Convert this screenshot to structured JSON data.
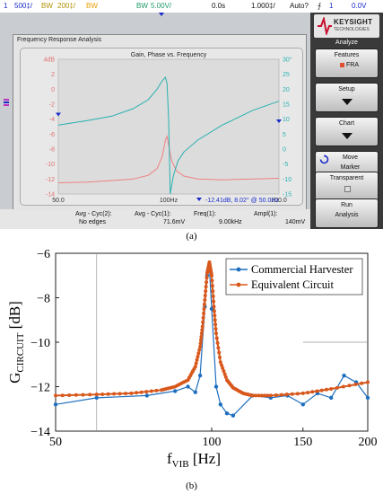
{
  "status_bar": {
    "ch1_num": "1",
    "ch1_scale": "500‡/",
    "ch1_bw": "BW",
    "ch2_scale": "200‡/",
    "ch2_bw": "BW",
    "ch4_bw": "BW",
    "ch4_scale": "5.00V/",
    "time_pos": "0.0s",
    "time_scale": "1.000‡/",
    "trigger_mode": "Auto?",
    "trigger_channel": "1",
    "trigger_level": "0.0V"
  },
  "fra_window": {
    "title": "Frequency Response Analysis",
    "chart_title": "Gain, Phase vs. Frequency",
    "marker_readout": "-12.41dB, 8.02° @ 50.0Hz"
  },
  "side_panel": {
    "brand": "KEYSIGHT",
    "brand_sub": "TECHNOLOGIES",
    "header": "Analyze",
    "buttons": [
      {
        "line1": "Features",
        "line2": "FRA"
      },
      {
        "line1": "Setup",
        "line2": ""
      },
      {
        "line1": "Chart",
        "line2": ""
      },
      {
        "line1": "Move",
        "line2": "Marker"
      },
      {
        "line1": "Transparent",
        "line2": ""
      },
      {
        "line1": "Run",
        "line2": "Analysis"
      }
    ]
  },
  "bottom_bar": {
    "m1_label": "Avg - Cyc(2):",
    "m1_value": "No edges",
    "m2_label": "Avg - Cyc(1):",
    "m2_value": "71.6mV",
    "m3_label": "Freq(1):",
    "m3_value": "9.00kHz",
    "m4_label": "Ampl(1):",
    "m4_value": "140mV"
  },
  "captions": {
    "a": "(a)",
    "b": "(b)"
  },
  "chart_data": [
    {
      "type": "line",
      "title": "Gain, Phase vs. Frequency",
      "x_scale": "log",
      "xlim": [
        50,
        200
      ],
      "x_ticks": [
        "50.0",
        "100Hz",
        "200.0"
      ],
      "y_left": {
        "unit": "dB",
        "lim": [
          -14,
          4
        ],
        "ticks": [
          "4dB",
          "2",
          "0",
          "-2",
          "-4",
          "-6",
          "-8",
          "-10",
          "-12",
          "-14"
        ]
      },
      "y_right": {
        "lim": [
          -15,
          30
        ],
        "ticks": [
          "30°",
          "25",
          "20",
          "15",
          "10",
          "5",
          "0",
          "-5",
          "-10",
          "-15"
        ]
      },
      "series": [
        {
          "axis": "left",
          "color": "#f08080",
          "x": [
            50,
            60,
            70,
            80,
            88,
            93,
            96,
            98,
            99,
            100,
            102,
            105,
            110,
            120,
            140,
            170,
            200
          ],
          "y": [
            -12.5,
            -12.4,
            -12.2,
            -12.0,
            -11.5,
            -10.6,
            -9.0,
            -6.8,
            -6.3,
            -7.5,
            -9.6,
            -10.9,
            -11.6,
            -12.0,
            -12.1,
            -12.0,
            -11.9
          ]
        },
        {
          "axis": "right",
          "color": "#28b0b0",
          "x": [
            50,
            60,
            70,
            80,
            88,
            93,
            96,
            98,
            99,
            100,
            101,
            103,
            106,
            110,
            120,
            140,
            170,
            200
          ],
          "y": [
            8,
            9.5,
            11,
            13.5,
            16.5,
            20,
            22.8,
            24,
            22,
            10,
            -15,
            -9,
            -4,
            -1,
            3,
            8,
            13,
            16
          ]
        }
      ]
    },
    {
      "type": "line",
      "x_scale": "log",
      "xlim": [
        50,
        200
      ],
      "ylim": [
        -14,
        -6
      ],
      "xlabel_main": "f",
      "xlabel_sub": "VIB",
      "xlabel_unit": "[Hz]",
      "ylabel_main": "G",
      "ylabel_sub": "CIRCUIT",
      "ylabel_unit": "[dB]",
      "x_ticks": [
        50,
        100,
        150,
        200
      ],
      "y_ticks": [
        -14,
        -12,
        -10,
        -8,
        -6
      ],
      "series": [
        {
          "name": "Commercial Harvester",
          "color": "#1f6fbf",
          "x": [
            50,
            60,
            75,
            85,
            90,
            93,
            95,
            97,
            98,
            99,
            100,
            102,
            104,
            107,
            110,
            120,
            130,
            140,
            150,
            160,
            170,
            180,
            190,
            200
          ],
          "y": [
            -12.8,
            -12.5,
            -12.4,
            -12.2,
            -12.0,
            -12.25,
            -11.5,
            -8.4,
            -7.0,
            -6.7,
            -8.5,
            -12.0,
            -12.8,
            -13.2,
            -13.3,
            -12.4,
            -12.5,
            -12.4,
            -12.8,
            -12.3,
            -12.5,
            -11.5,
            -11.8,
            -12.5
          ]
        },
        {
          "name": "Equivalent Circuit",
          "color": "#d8581c",
          "x": [
            50,
            60,
            70,
            80,
            85,
            90,
            93,
            95,
            96,
            97,
            98,
            99,
            100,
            101,
            102,
            104,
            107,
            110,
            115,
            120,
            130,
            150,
            170,
            200
          ],
          "y": [
            -12.4,
            -12.35,
            -12.3,
            -12.15,
            -12.0,
            -11.7,
            -11.1,
            -10.2,
            -9.3,
            -8.1,
            -6.9,
            -6.4,
            -7.0,
            -8.4,
            -9.6,
            -10.9,
            -11.7,
            -12.05,
            -12.3,
            -12.4,
            -12.4,
            -12.3,
            -12.1,
            -11.8
          ]
        }
      ],
      "legend": "top-right",
      "grid": false
    }
  ]
}
